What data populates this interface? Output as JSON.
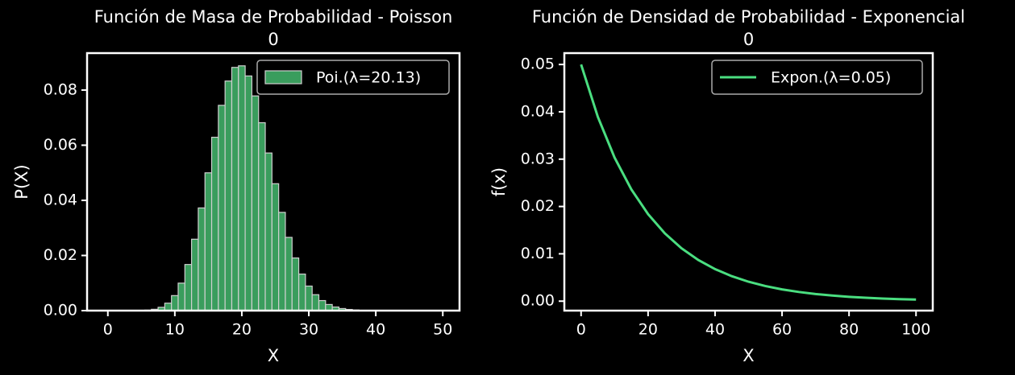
{
  "chart_data": [
    {
      "type": "bar",
      "title": "Función de Masa de Probabilidad - Poisson",
      "subtitle": "0",
      "xlabel": "X",
      "ylabel": "P(X)",
      "x": [
        0,
        1,
        2,
        3,
        4,
        5,
        6,
        7,
        8,
        9,
        10,
        11,
        12,
        13,
        14,
        15,
        16,
        17,
        18,
        19,
        20,
        21,
        22,
        23,
        24,
        25,
        26,
        27,
        28,
        29,
        30,
        31,
        32,
        33,
        34,
        35,
        36,
        37,
        38,
        39,
        40,
        41,
        42,
        43,
        44,
        45,
        46,
        47,
        48,
        49
      ],
      "series": [
        {
          "name": "Poi.(λ=20.13)",
          "color": "#3a9d5d",
          "edgecolor": "#cfcfcf",
          "values": [
            0,
            0,
            0,
            0,
            1e-05,
            5e-05,
            0.00017,
            0.00048,
            0.00121,
            0.00271,
            0.00545,
            0.00997,
            0.01673,
            0.0259,
            0.03724,
            0.04998,
            0.06288,
            0.07446,
            0.08327,
            0.08822,
            0.08879,
            0.08511,
            0.07788,
            0.06816,
            0.05717,
            0.04603,
            0.03564,
            0.02657,
            0.0191,
            0.01326,
            0.0089,
            0.00578,
            0.00364,
            0.00222,
            0.00131,
            0.00075,
            0.00042,
            0.00023,
            0.00012,
            6e-05,
            3e-05,
            1e-05,
            0,
            0,
            0,
            0,
            0,
            0,
            0,
            0
          ]
        }
      ],
      "xlim": [
        -3.1,
        52.5
      ],
      "ylim": [
        0,
        0.0934
      ],
      "xticks": [
        0,
        10,
        20,
        30,
        40,
        50
      ],
      "yticks": [
        {
          "value": 0,
          "label": "0.00"
        },
        {
          "value": 0.02,
          "label": "0.02"
        },
        {
          "value": 0.04,
          "label": "0.04"
        },
        {
          "value": 0.06,
          "label": "0.06"
        },
        {
          "value": 0.08,
          "label": "0.08"
        }
      ],
      "legend": "upper right"
    },
    {
      "type": "line",
      "title": "Función de Densidad de Probabilidad - Exponencial",
      "subtitle": "0",
      "xlabel": "X",
      "ylabel": "f(x)",
      "x": [
        0,
        5,
        10,
        15,
        20,
        25,
        30,
        35,
        40,
        45,
        50,
        55,
        60,
        65,
        70,
        75,
        80,
        85,
        90,
        95,
        100
      ],
      "series": [
        {
          "name": "Expon.(λ=0.05)",
          "color": "#4ade80",
          "values": [
            0.05,
            0.03894,
            0.03033,
            0.02362,
            0.01839,
            0.01433,
            0.01116,
            0.00869,
            0.00677,
            0.00527,
            0.0041,
            0.0032,
            0.00249,
            0.00194,
            0.00151,
            0.00118,
            0.00092,
            0.00071,
            0.00056,
            0.00043,
            0.00034
          ]
        }
      ],
      "xlim": [
        -5,
        105
      ],
      "ylim": [
        -0.002,
        0.0524
      ],
      "xticks": [
        0,
        20,
        40,
        60,
        80,
        100
      ],
      "yticks": [
        {
          "value": 0,
          "label": "0.00"
        },
        {
          "value": 0.01,
          "label": "0.01"
        },
        {
          "value": 0.02,
          "label": "0.02"
        },
        {
          "value": 0.03,
          "label": "0.03"
        },
        {
          "value": 0.04,
          "label": "0.04"
        },
        {
          "value": 0.05,
          "label": "0.05"
        }
      ],
      "legend": "upper right"
    }
  ]
}
